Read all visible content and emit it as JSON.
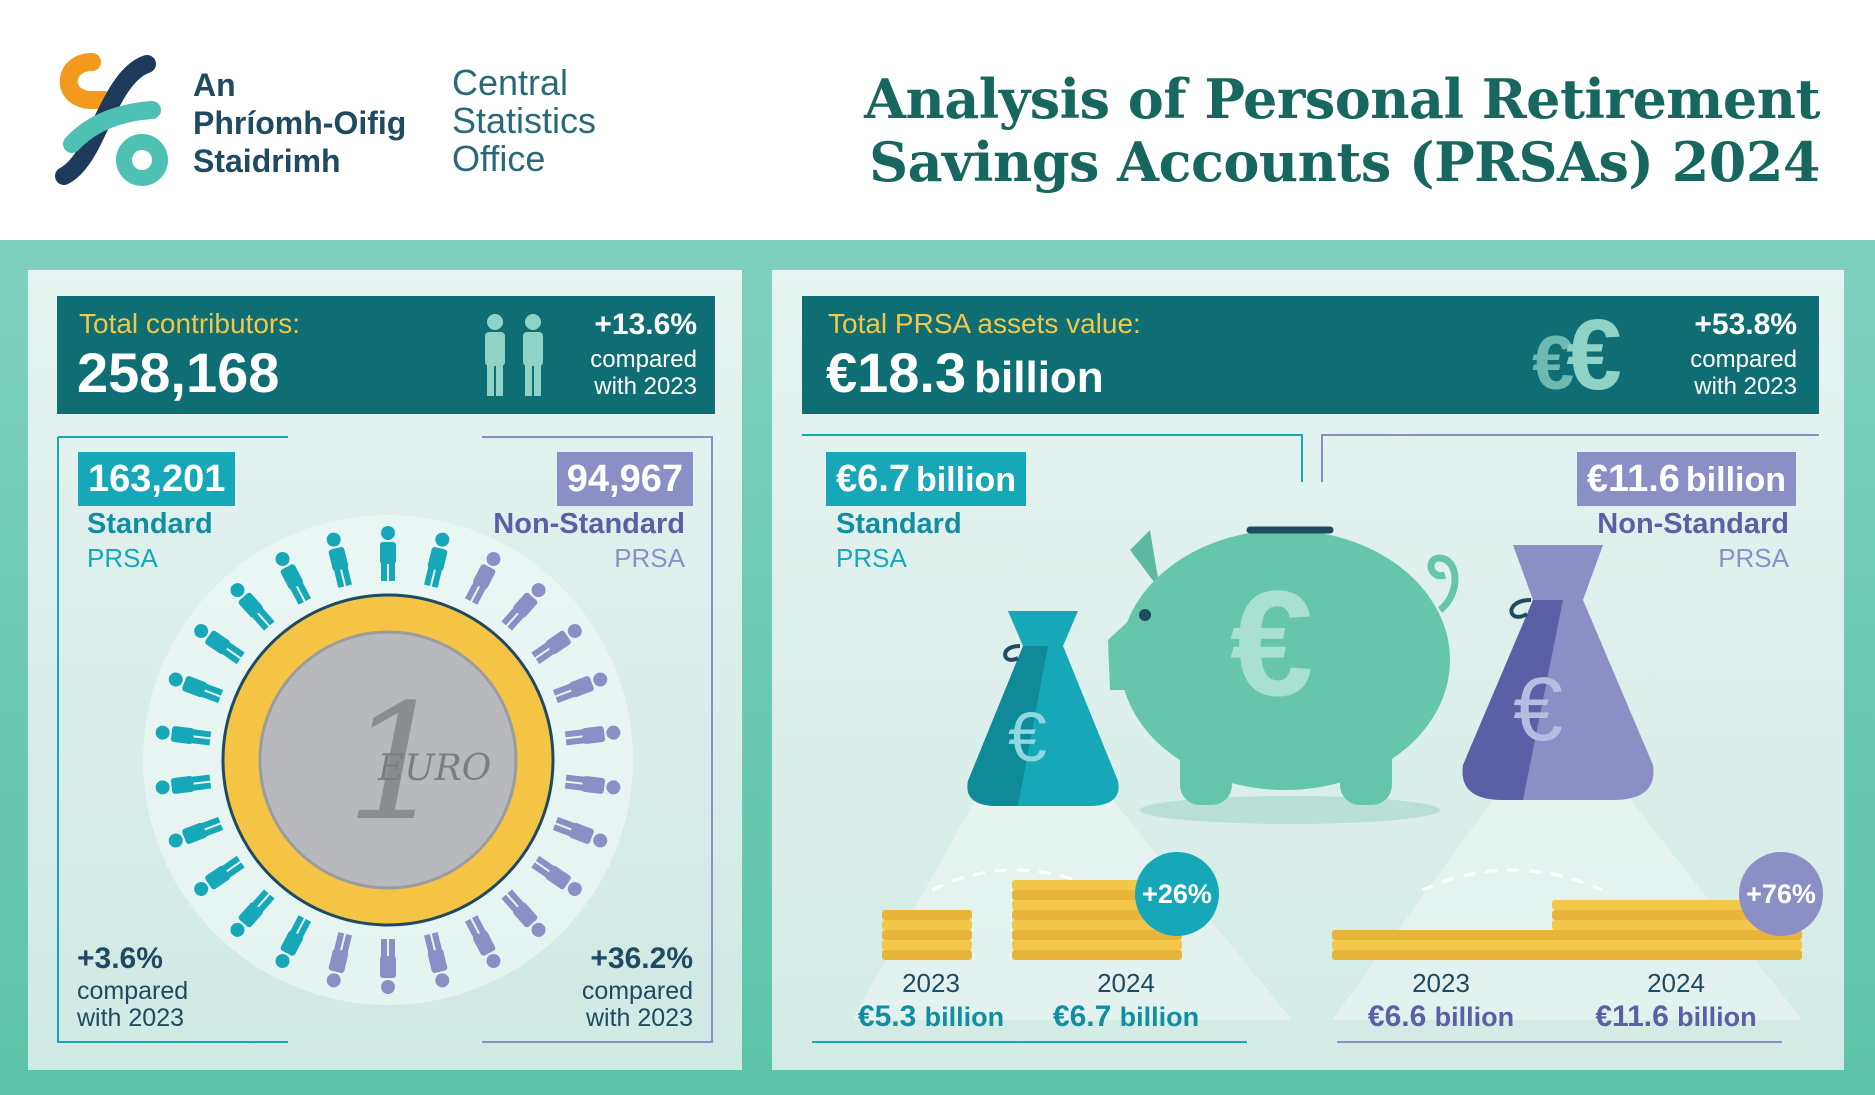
{
  "header": {
    "logo_irish": [
      "An",
      "Phríomh-Oifig",
      "Staidrimh"
    ],
    "logo_english": [
      "Central",
      "Statistics",
      "Office"
    ],
    "title_line1": "Analysis of Personal Retirement",
    "title_line2": "Savings Accounts (PRSAs) 2024"
  },
  "contributors": {
    "label": "Total contributors:",
    "value": "258,168",
    "change": "+13.6%",
    "compare": [
      "compared",
      "with 2023"
    ],
    "icon": "people-icon",
    "standard": {
      "value": "163,201",
      "label1": "Standard",
      "label2": "PRSA",
      "change": "+3.6%",
      "compare": [
        "compared",
        "with 2023"
      ]
    },
    "non_standard": {
      "value": "94,967",
      "label1": "Non-Standard",
      "label2": "PRSA",
      "change": "+36.2%",
      "compare": [
        "compared",
        "with 2023"
      ]
    },
    "coin_text": "EURO",
    "coin_digit": "1"
  },
  "assets": {
    "label": "Total PRSA assets value:",
    "value_num": "€18.3",
    "value_unit": "billion",
    "change": "+53.8%",
    "compare": [
      "compared",
      "with 2023"
    ],
    "icon": "euro-icon",
    "standard": {
      "value_num": "€6.7",
      "value_unit": "billion",
      "label1": "Standard",
      "label2": "PRSA",
      "growth": "+26%",
      "y2023": "2023",
      "v2023_num": "€5.3",
      "v2023_unit": "billion",
      "y2024": "2024",
      "v2024_num": "€6.7",
      "v2024_unit": "billion"
    },
    "non_standard": {
      "value_num": "€11.6",
      "value_unit": "billion",
      "label1": "Non-Standard",
      "label2": "PRSA",
      "growth": "+76%",
      "y2023": "2023",
      "v2023_num": "€6.6",
      "v2023_unit": "billion",
      "y2024": "2024",
      "v2024_num": "€11.6",
      "v2024_unit": "billion"
    },
    "euro_symbol": "€"
  },
  "colors": {
    "dark_teal": "#0e6e73",
    "standard": "#16a8b8",
    "non_standard": "#8b8fc6",
    "gold": "#f3c84a",
    "band": "#5cc4a8"
  }
}
